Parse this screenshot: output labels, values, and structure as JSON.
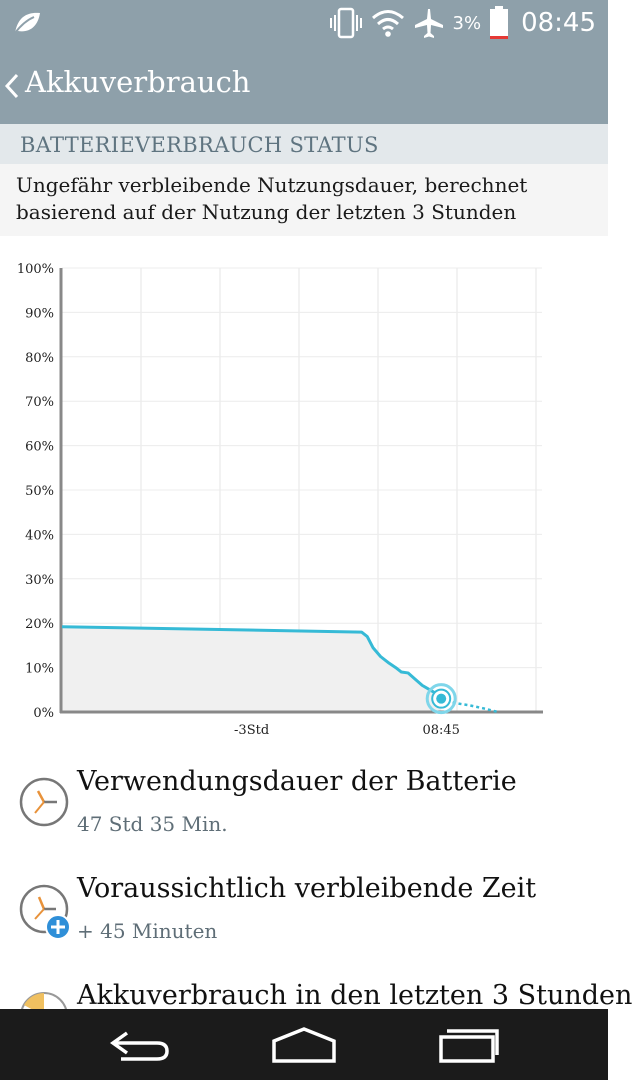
{
  "status_bar": {
    "battery_percent": "3%",
    "time": "08:45"
  },
  "header": {
    "title": "Akkuverbrauch"
  },
  "section": {
    "title": "BATTERIEVERBRAUCH STATUS"
  },
  "description": "Ungefähr verbleibende Nutzungsdauer, berechnet basierend auf der Nutzung der letzten 3 Stunden",
  "chart_data": {
    "type": "line",
    "y_ticks": [
      "100%",
      "90%",
      "80%",
      "70%",
      "60%",
      "50%",
      "40%",
      "30%",
      "20%",
      "10%",
      "0%"
    ],
    "ylim": [
      0,
      100
    ],
    "xlim": [
      -4.0,
      1.0
    ],
    "x_ticks": [
      {
        "label": "-3Std",
        "x": -2.0
      },
      {
        "label": "08:45",
        "x": 0
      }
    ],
    "grid": true,
    "series": [
      {
        "style": "solid",
        "color": "#36bad6",
        "x": [
          -4.0,
          -0.84,
          -0.78,
          -0.72,
          -0.64,
          -0.55,
          -0.48,
          -0.42,
          -0.35,
          -0.28,
          -0.2,
          -0.12,
          -0.04,
          0
        ],
        "y": [
          19.2,
          18.0,
          17.0,
          14.5,
          12.5,
          11.0,
          10.0,
          9.0,
          8.8,
          7.5,
          6.0,
          5.0,
          4.0,
          3.0
        ]
      },
      {
        "style": "dotted",
        "color": "#36bad6",
        "x": [
          0,
          0.15,
          0.3,
          0.45,
          0.6
        ],
        "y": [
          3.0,
          2.0,
          1.5,
          0.8,
          0.0
        ]
      }
    ],
    "current_point": {
      "x": 0,
      "y": 3.0
    }
  },
  "items": [
    {
      "title": "Verwendungsdauer der Batterie",
      "subtitle": "47 Std 35 Min."
    },
    {
      "title": "Voraussichtlich verbleibende Zeit",
      "subtitle": "+ 45 Minuten"
    },
    {
      "title": "Akkuverbrauch in den letzten 3 Stunden",
      "subtitle": ""
    }
  ],
  "colors": {
    "bar": "#8ea0aa",
    "accent": "#36bad6",
    "badge": "#2f8fd8",
    "nav": "#1b1b1b"
  }
}
